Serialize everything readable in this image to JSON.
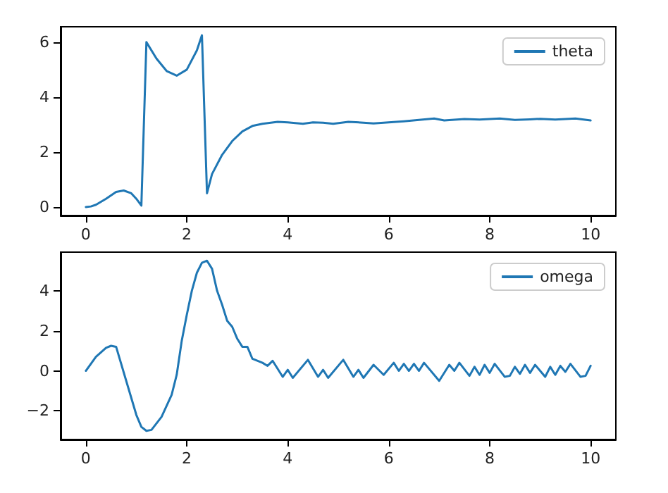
{
  "chart_data": [
    {
      "type": "line",
      "xlim": [
        -0.5,
        10.5
      ],
      "xticks": [
        0,
        2,
        4,
        6,
        8,
        10
      ],
      "ylim": [
        -0.31,
        6.56
      ],
      "yticks": [
        0,
        2,
        4,
        6
      ],
      "grid": false,
      "legend": "top right",
      "marker": "none",
      "line_style": "solid",
      "series": [
        {
          "name": "theta",
          "color": "#1f77b4",
          "x": [
            0,
            0.1,
            0.2,
            0.4,
            0.6,
            0.75,
            0.9,
            1.0,
            1.1,
            1.2,
            1.4,
            1.6,
            1.8,
            2.0,
            2.2,
            2.3,
            2.4,
            2.5,
            2.7,
            2.9,
            3.1,
            3.3,
            3.5,
            3.8,
            4.0,
            4.3,
            4.5,
            4.7,
            4.9,
            5.2,
            5.5,
            5.7,
            6.0,
            6.3,
            6.6,
            6.9,
            7.1,
            7.5,
            7.8,
            8.2,
            8.5,
            8.8,
            9.0,
            9.3,
            9.7,
            10
          ],
          "values": [
            0,
            0.02,
            0.08,
            0.3,
            0.55,
            0.6,
            0.5,
            0.3,
            0.05,
            6.0,
            5.4,
            4.95,
            4.78,
            5.0,
            5.7,
            6.25,
            0.5,
            1.2,
            1.9,
            2.4,
            2.75,
            2.95,
            3.03,
            3.1,
            3.08,
            3.03,
            3.08,
            3.07,
            3.03,
            3.1,
            3.07,
            3.04,
            3.08,
            3.12,
            3.17,
            3.22,
            3.15,
            3.2,
            3.18,
            3.22,
            3.17,
            3.19,
            3.21,
            3.18,
            3.22,
            3.15
          ]
        }
      ]
    },
    {
      "type": "line",
      "xlim": [
        -0.5,
        10.5
      ],
      "xticks": [
        0,
        2,
        4,
        6,
        8,
        10
      ],
      "ylim": [
        -3.43,
        5.93
      ],
      "yticks": [
        -2,
        0,
        2,
        4
      ],
      "grid": false,
      "legend": "top right",
      "marker": "none",
      "line_style": "solid",
      "series": [
        {
          "name": "omega",
          "color": "#1f77b4",
          "x": [
            0,
            0.2,
            0.4,
            0.5,
            0.6,
            0.8,
            1.0,
            1.1,
            1.2,
            1.3,
            1.5,
            1.7,
            1.8,
            1.9,
            2.0,
            2.1,
            2.2,
            2.3,
            2.4,
            2.5,
            2.6,
            2.7,
            2.8,
            2.9,
            3.0,
            3.1,
            3.2,
            3.3,
            3.5,
            3.6,
            3.7,
            3.9,
            4.0,
            4.1,
            4.4,
            4.6,
            4.7,
            4.8,
            5.1,
            5.3,
            5.4,
            5.5,
            5.7,
            5.9,
            6.1,
            6.2,
            6.3,
            6.4,
            6.5,
            6.6,
            6.7,
            7.0,
            7.2,
            7.3,
            7.4,
            7.6,
            7.7,
            7.8,
            7.9,
            8.0,
            8.1,
            8.3,
            8.4,
            8.5,
            8.6,
            8.7,
            8.8,
            8.9,
            9.1,
            9.2,
            9.3,
            9.4,
            9.5,
            9.6,
            9.8,
            9.9,
            10
          ],
          "values": [
            0,
            0.7,
            1.15,
            1.25,
            1.2,
            -0.5,
            -2.2,
            -2.8,
            -3.0,
            -2.95,
            -2.3,
            -1.2,
            -0.2,
            1.5,
            2.8,
            4.0,
            4.9,
            5.4,
            5.5,
            5.1,
            4.0,
            3.3,
            2.5,
            2.2,
            1.6,
            1.2,
            1.2,
            0.6,
            0.4,
            0.25,
            0.5,
            -0.3,
            0.05,
            -0.35,
            0.55,
            -0.3,
            0.05,
            -0.35,
            0.55,
            -0.3,
            0.05,
            -0.35,
            0.3,
            -0.2,
            0.4,
            0.0,
            0.35,
            0.0,
            0.35,
            0.0,
            0.4,
            -0.5,
            0.3,
            0.0,
            0.4,
            -0.25,
            0.2,
            -0.2,
            0.3,
            -0.1,
            0.35,
            -0.3,
            -0.25,
            0.2,
            -0.15,
            0.3,
            -0.1,
            0.3,
            -0.3,
            0.2,
            -0.2,
            0.25,
            -0.05,
            0.35,
            -0.3,
            -0.25,
            0.25
          ]
        }
      ]
    }
  ]
}
